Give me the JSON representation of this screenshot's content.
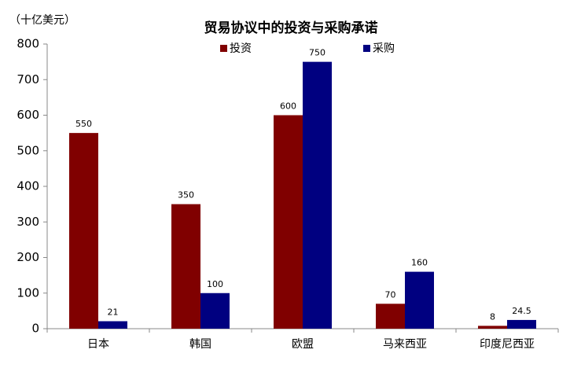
{
  "chart_data": {
    "type": "bar",
    "title": "贸易协议中的投资与采购承诺",
    "y_label": "（十亿美元）",
    "categories": [
      "日本",
      "韩国",
      "欧盟",
      "马来西亚",
      "印度尼西亚"
    ],
    "series": [
      {
        "name": "投资",
        "color": "#800000",
        "values": [
          550,
          350,
          600,
          70,
          8
        ]
      },
      {
        "name": "采购",
        "color": "#000080",
        "values": [
          21,
          100,
          750,
          160,
          24.5
        ]
      }
    ],
    "ylim": [
      0,
      800
    ],
    "yticks": [
      0,
      100,
      200,
      300,
      400,
      500,
      600,
      700,
      800
    ],
    "grid": false,
    "legend": "top"
  }
}
